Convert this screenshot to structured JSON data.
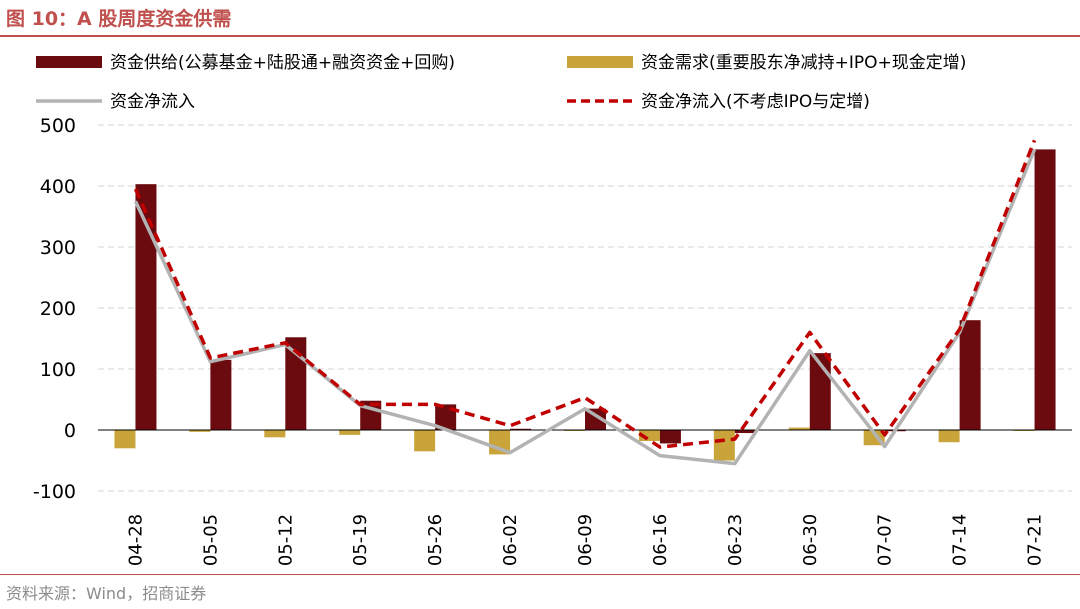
{
  "header": {
    "title": "图 10：A 股周度资金供需"
  },
  "footer": {
    "source": "资料来源：Wind，招商证券"
  },
  "colors": {
    "supply": "#6b0a0f",
    "demand": "#c9a43a",
    "net": "#b3b3b3",
    "net_ex": "#c00000",
    "accent": "#c0504d"
  },
  "chart_data": {
    "type": "bar",
    "title": "A 股周度资金供需",
    "xlabel": "",
    "ylabel": "",
    "ylim": [
      -100,
      500
    ],
    "yticks": [
      -100,
      0,
      100,
      200,
      300,
      400,
      500
    ],
    "grid": true,
    "legend_position": "top",
    "categories": [
      "04-28",
      "05-05",
      "05-12",
      "05-19",
      "05-26",
      "06-02",
      "06-09",
      "06-16",
      "06-23",
      "06-30",
      "07-07",
      "07-14",
      "07-21"
    ],
    "series": [
      {
        "name": "资金供给(公募基金+陆股通+融资资金+回购)",
        "kind": "bar",
        "values": [
          403,
          115,
          152,
          48,
          42,
          2,
          35,
          -22,
          -5,
          126,
          -2,
          180,
          460
        ]
      },
      {
        "name": "资金需求(重要股东净减持+IPO+现金定增)",
        "kind": "bar",
        "values": [
          -30,
          -3,
          -12,
          -8,
          -35,
          -40,
          0,
          -18,
          -50,
          4,
          -25,
          -20,
          0
        ]
      },
      {
        "name": "资金净流入",
        "kind": "line",
        "values": [
          375,
          112,
          140,
          40,
          7,
          -37,
          35,
          -42,
          -55,
          130,
          -27,
          160,
          460
        ]
      },
      {
        "name": "资金净流入(不考虑IPO与定增)",
        "kind": "dashed-line",
        "values": [
          395,
          118,
          143,
          42,
          42,
          7,
          53,
          -28,
          -15,
          160,
          -8,
          165,
          475
        ]
      }
    ]
  }
}
